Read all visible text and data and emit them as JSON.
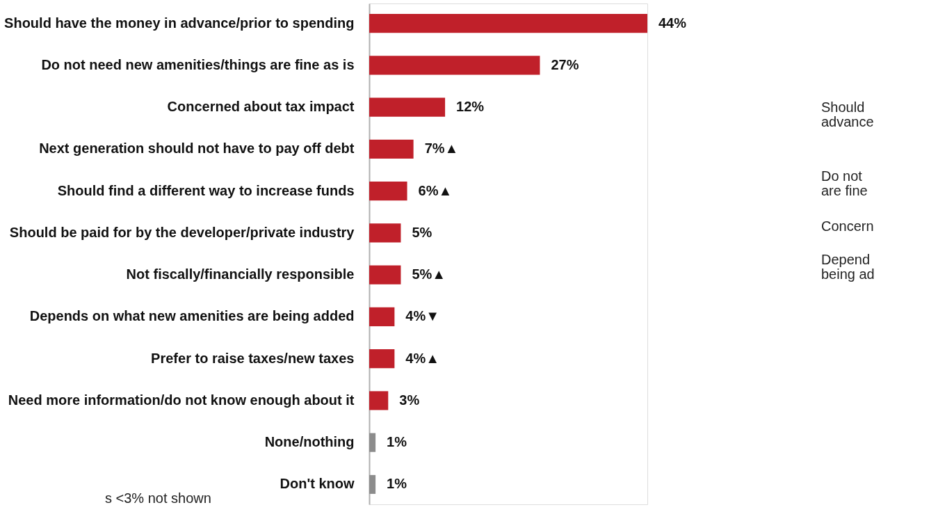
{
  "chart_data": {
    "type": "bar",
    "orientation": "horizontal",
    "categories": [
      "Should have the money in advance/prior to spending",
      "Do not need new amenities/things are fine as is",
      "Concerned about tax impact",
      "Next generation should not have to pay off debt",
      "Should find a different way to increase funds",
      "Should be paid for by the developer/private industry",
      "Not fiscally/financially responsible",
      "Depends on what new amenities are being added",
      "Prefer to raise taxes/new taxes",
      "Need more information/do not know enough about it",
      "None/nothing",
      "Don't know"
    ],
    "values": [
      44,
      27,
      12,
      7,
      6,
      5,
      5,
      4,
      4,
      3,
      1,
      1
    ],
    "colors": [
      "#c0202a",
      "#c0202a",
      "#c0202a",
      "#c0202a",
      "#c0202a",
      "#c0202a",
      "#c0202a",
      "#c0202a",
      "#c0202a",
      "#c0202a",
      "#8c8c8c",
      "#8c8c8c"
    ],
    "value_labels": [
      "44%",
      "27%",
      "12%",
      "7%▲",
      "6%▲",
      "5%",
      "5%▲",
      "4%▼",
      "4%▲",
      "3%",
      "1%",
      "1%"
    ],
    "annotations": [
      "s <3% not shown",
      "Should",
      "advance",
      "Do not",
      "are fine",
      "Concern",
      "Depend",
      "being ad"
    ]
  }
}
